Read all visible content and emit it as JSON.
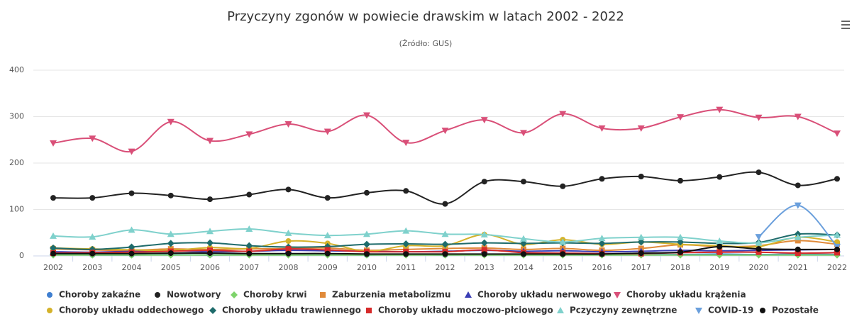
{
  "chart_data": {
    "type": "line",
    "title": "Przyczyny zgonów w powiecie drawskim w latach 2002 - 2022",
    "subtitle": "(Źródło: GUS)",
    "categories": [
      "2002",
      "2003",
      "2004",
      "2005",
      "2006",
      "2007",
      "2008",
      "2009",
      "2010",
      "2011",
      "2012",
      "2013",
      "2014",
      "2015",
      "2016",
      "2017",
      "2018",
      "2019",
      "2020",
      "2021",
      "2022"
    ],
    "ylim": [
      0,
      400
    ],
    "yticks": [
      0,
      100,
      200,
      300,
      400
    ],
    "grid": true,
    "legend": "bottom",
    "series": [
      {
        "name": "Choroby zakaźne",
        "color": "#3f7fd0",
        "marker": "circle",
        "values": [
          3,
          2,
          2,
          3,
          2,
          3,
          3,
          3,
          2,
          3,
          2,
          3,
          3,
          3,
          3,
          3,
          3,
          4,
          3,
          4,
          3
        ]
      },
      {
        "name": "Nowotwory",
        "color": "#222222",
        "marker": "circle",
        "values": [
          125,
          125,
          135,
          130,
          122,
          132,
          143,
          125,
          136,
          140,
          112,
          160,
          160,
          150,
          166,
          171,
          162,
          170,
          180,
          152,
          166
        ]
      },
      {
        "name": "Choroby krwi",
        "color": "#7ed36b",
        "marker": "diamond",
        "values": [
          2,
          2,
          2,
          2,
          2,
          2,
          2,
          2,
          2,
          2,
          2,
          2,
          2,
          2,
          2,
          2,
          2,
          2,
          2,
          2,
          2
        ]
      },
      {
        "name": "Zaburzenia metabolizmu",
        "color": "#e08a3a",
        "marker": "square",
        "values": [
          15,
          13,
          12,
          15,
          14,
          15,
          16,
          17,
          12,
          14,
          16,
          17,
          14,
          16,
          12,
          16,
          24,
          20,
          22,
          33,
          25
        ]
      },
      {
        "name": "Choroby układu nerwowego",
        "color": "#3b3eb5",
        "marker": "triangle",
        "values": [
          9,
          8,
          10,
          11,
          9,
          10,
          12,
          11,
          10,
          9,
          10,
          12,
          10,
          11,
          9,
          10,
          12,
          11,
          12,
          13,
          14
        ]
      },
      {
        "name": "Choroby układu krążenia",
        "color": "#d94f78",
        "marker": "triangle-down",
        "values": [
          243,
          253,
          225,
          289,
          248,
          262,
          284,
          268,
          303,
          244,
          270,
          293,
          265,
          306,
          275,
          275,
          299,
          315,
          298,
          300,
          264
        ]
      },
      {
        "name": "Choroby układu oddechowego",
        "color": "#d4b22a",
        "marker": "circle",
        "values": [
          17,
          15,
          13,
          12,
          18,
          16,
          32,
          27,
          10,
          22,
          22,
          46,
          25,
          35,
          25,
          30,
          25,
          22,
          20,
          40,
          30
        ]
      },
      {
        "name": "Choroby układu trawiennego",
        "color": "#1e6b6b",
        "marker": "diamond",
        "values": [
          17,
          14,
          19,
          27,
          28,
          22,
          19,
          20,
          25,
          26,
          25,
          28,
          27,
          28,
          27,
          30,
          30,
          27,
          29,
          47,
          45
        ]
      },
      {
        "name": "Choroby układu moczowo-płciowego",
        "color": "#d62a2a",
        "marker": "square",
        "values": [
          6,
          7,
          8,
          10,
          12,
          10,
          15,
          13,
          9,
          9,
          9,
          13,
          7,
          6,
          5,
          5,
          7,
          8,
          8,
          6,
          7
        ]
      },
      {
        "name": "Pczyczyny zewnętrzne",
        "color": "#7fd1cc",
        "marker": "triangle",
        "values": [
          43,
          41,
          56,
          47,
          53,
          58,
          49,
          44,
          47,
          54,
          47,
          46,
          37,
          30,
          38,
          40,
          40,
          32,
          28,
          40,
          45
        ]
      },
      {
        "name": "COVID-19",
        "color": "#6a9fdc",
        "marker": "triangle-down",
        "values": [
          null,
          null,
          null,
          null,
          null,
          null,
          null,
          null,
          null,
          null,
          null,
          null,
          null,
          null,
          null,
          null,
          null,
          null,
          41,
          109,
          20
        ]
      },
      {
        "name": "Pozostałe",
        "color": "#111111",
        "marker": "circle",
        "values": [
          5,
          5,
          5,
          6,
          6,
          5,
          5,
          5,
          4,
          4,
          4,
          4,
          4,
          4,
          4,
          6,
          8,
          20,
          15,
          14,
          14
        ]
      }
    ]
  }
}
